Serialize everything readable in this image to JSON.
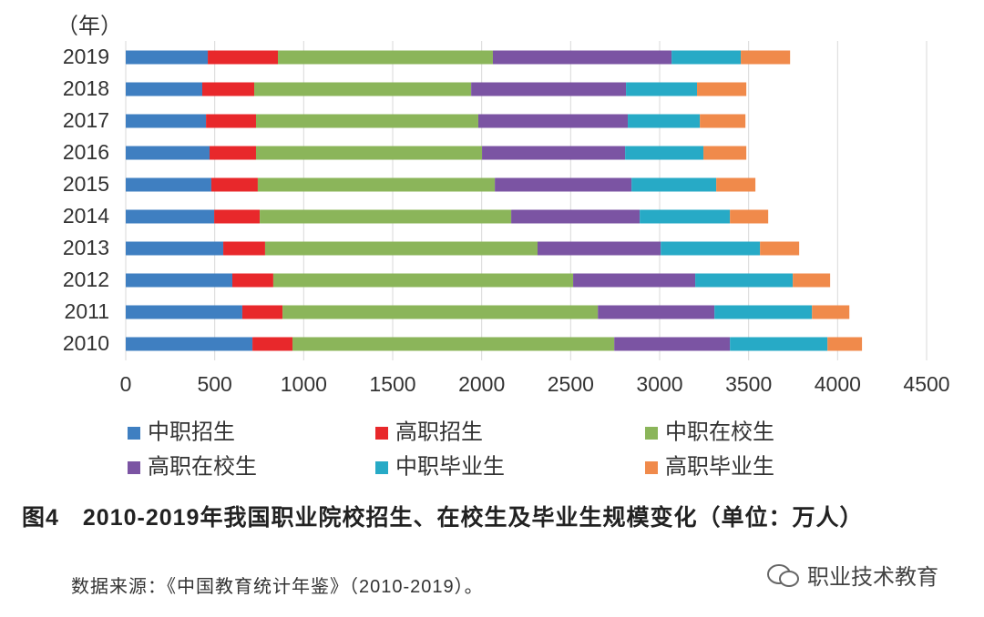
{
  "chart_data": {
    "type": "stacked-bar-horizontal",
    "y_label": "（年）",
    "categories": [
      "2019",
      "2018",
      "2017",
      "2016",
      "2015",
      "2014",
      "2013",
      "2012",
      "2011",
      "2010"
    ],
    "series": [
      {
        "name": "中职招生",
        "color": "#3f7fc1",
        "values": [
          461,
          430,
          451,
          471,
          481,
          497,
          548,
          599,
          655,
          712
        ]
      },
      {
        "name": "高职招生",
        "color": "#e8282b",
        "values": [
          394,
          292,
          281,
          261,
          261,
          256,
          235,
          230,
          226,
          225
        ]
      },
      {
        "name": "中职在校生",
        "color": "#8bb55a",
        "values": [
          1208,
          1219,
          1249,
          1270,
          1332,
          1413,
          1531,
          1685,
          1772,
          1808
        ]
      },
      {
        "name": "高职在校生",
        "color": "#7b54a3",
        "values": [
          1004,
          870,
          840,
          804,
          768,
          722,
          692,
          686,
          655,
          650
        ]
      },
      {
        "name": "中职毕业生",
        "color": "#27aac6",
        "values": [
          389,
          399,
          405,
          440,
          476,
          507,
          558,
          548,
          548,
          548
        ]
      },
      {
        "name": "高职毕业生",
        "color": "#f08a4b",
        "values": [
          277,
          277,
          256,
          241,
          220,
          215,
          220,
          210,
          210,
          194
        ]
      }
    ],
    "xlim": [
      0,
      4500
    ],
    "xticks": [
      0,
      500,
      1000,
      1500,
      2000,
      2500,
      3000,
      3500,
      4000,
      4500
    ],
    "grid": true
  },
  "caption": "图4　2010-2019年我国职业院校招生、在校生及毕业生规模变化（单位：万人）",
  "source": "数据来源：《中国教育统计年鉴》（2010-2019）。",
  "watermark": "职业技术教育"
}
